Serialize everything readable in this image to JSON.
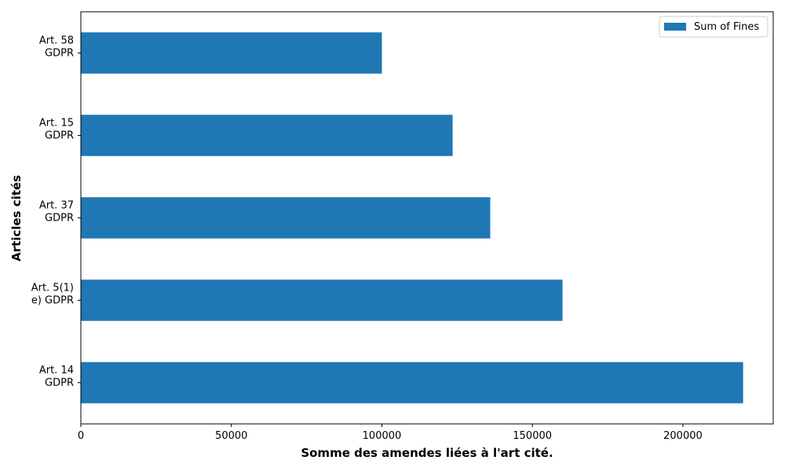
{
  "chart_data": {
    "type": "bar",
    "orientation": "horizontal",
    "categories": [
      [
        "Art. 14",
        "GDPR"
      ],
      [
        "Art. 5(1)",
        "e) GDPR"
      ],
      [
        "Art. 37",
        "GDPR"
      ],
      [
        "Art. 15",
        "GDPR"
      ],
      [
        "Art. 58",
        "GDPR"
      ]
    ],
    "series": [
      {
        "name": "Sum of Fines",
        "values": [
          220000,
          160000,
          136000,
          123500,
          100000
        ],
        "color": "#1f77b4"
      }
    ],
    "xlabel": "Somme des amendes liées à l'art cité.",
    "ylabel": "Articles cités",
    "xlim": [
      0,
      230000
    ],
    "xticks": [
      0,
      50000,
      100000,
      150000,
      200000
    ],
    "grid": false,
    "legend_position": "top-right"
  }
}
